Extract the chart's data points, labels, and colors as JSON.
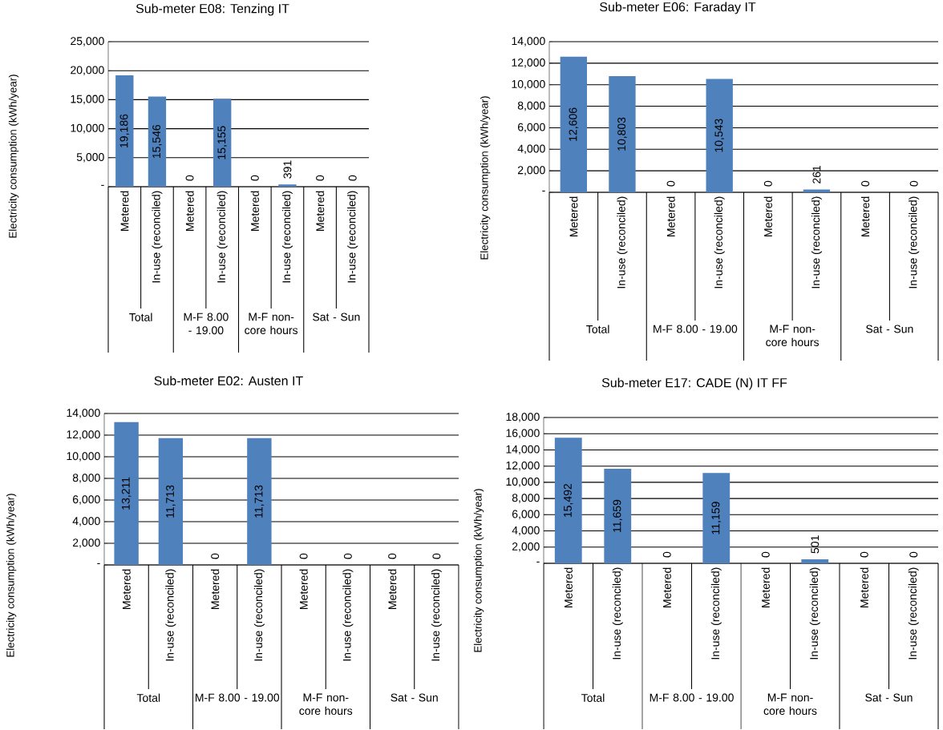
{
  "chart_data": [
    {
      "type": "bar",
      "title": "Sub-meter E08: Tenzing IT",
      "ylabel": "Electricity consumption (kWh/year)",
      "categories": [
        "Metered",
        "In-use (reconciled)",
        "Metered",
        "In-use (reconciled)",
        "Metered",
        "In-use (reconciled)",
        "Metered",
        "In-use (reconciled)"
      ],
      "values": [
        19186,
        15546,
        0,
        15155,
        0,
        391,
        0,
        0
      ],
      "value_labels": [
        "19,186",
        "15,546",
        "0",
        "15,155",
        "0",
        "391",
        "0",
        "0"
      ],
      "color": "#4f81bd",
      "ylim": [
        0,
        25000
      ],
      "yticks": [
        {
          "value": 0,
          "label": "-"
        },
        {
          "value": 5000,
          "label": "5,000"
        },
        {
          "value": 10000,
          "label": "10,000"
        },
        {
          "value": 15000,
          "label": "15,000"
        },
        {
          "value": 20000,
          "label": "20,000"
        },
        {
          "value": 25000,
          "label": "25,000"
        }
      ],
      "grid": "y",
      "annotations": [
        "Total",
        "M-F 8.00 - 19.00",
        "M-F non-core hours",
        "Sat - Sun"
      ]
    },
    {
      "type": "bar",
      "title": "Sub-meter E06: Faraday IT",
      "ylabel": "Electricity consumption (kWh/year)",
      "categories": [
        "Metered",
        "In-use (reconciled)",
        "Metered",
        "In-use (reconciled)",
        "Metered",
        "In-use (reconciled)",
        "Metered",
        "In-use (reconciled)"
      ],
      "values": [
        12606,
        10803,
        0,
        10543,
        0,
        261,
        0,
        0
      ],
      "value_labels": [
        "12,606",
        "10,803",
        "0",
        "10,543",
        "0",
        "261",
        "0",
        "0"
      ],
      "color": "#4f81bd",
      "ylim": [
        0,
        14000
      ],
      "yticks": [
        {
          "value": 0,
          "label": "-"
        },
        {
          "value": 2000,
          "label": "2,000"
        },
        {
          "value": 4000,
          "label": "4,000"
        },
        {
          "value": 6000,
          "label": "6,000"
        },
        {
          "value": 8000,
          "label": "8,000"
        },
        {
          "value": 10000,
          "label": "10,000"
        },
        {
          "value": 12000,
          "label": "12,000"
        },
        {
          "value": 14000,
          "label": "14,000"
        }
      ],
      "grid": "y",
      "annotations": [
        "Total",
        "M-F 8.00 - 19.00",
        "M-F non-core hours",
        "Sat - Sun"
      ]
    },
    {
      "type": "bar",
      "title": "Sub-meter E02: Austen IT",
      "ylabel": "Electricity consumption (kWh/year)",
      "categories": [
        "Metered",
        "In-use (reconciled)",
        "Metered",
        "In-use (reconciled)",
        "Metered",
        "In-use (reconciled)",
        "Metered",
        "In-use (reconciled)"
      ],
      "values": [
        13211,
        11713,
        0,
        11713,
        0,
        0,
        0,
        0
      ],
      "value_labels": [
        "13,211",
        "11,713",
        "0",
        "11,713",
        "0",
        "0",
        "0",
        "0"
      ],
      "color": "#4f81bd",
      "ylim": [
        0,
        14000
      ],
      "yticks": [
        {
          "value": 0,
          "label": "-"
        },
        {
          "value": 2000,
          "label": "2,000"
        },
        {
          "value": 4000,
          "label": "4,000"
        },
        {
          "value": 6000,
          "label": "6,000"
        },
        {
          "value": 8000,
          "label": "8,000"
        },
        {
          "value": 10000,
          "label": "10,000"
        },
        {
          "value": 12000,
          "label": "12,000"
        },
        {
          "value": 14000,
          "label": "14,000"
        }
      ],
      "grid": "y",
      "annotations": [
        "Total",
        "M-F 8.00 - 19.00",
        "M-F non-core hours",
        "Sat - Sun"
      ]
    },
    {
      "type": "bar",
      "title": "Sub-meter E17: CADE (N) IT FF",
      "ylabel": "Electricity consumption (kWh/year)",
      "categories": [
        "Metered",
        "In-use (reconciled)",
        "Metered",
        "In-use (reconciled)",
        "Metered",
        "In-use (reconciled)",
        "Metered",
        "In-use (reconciled)"
      ],
      "values": [
        15492,
        11659,
        0,
        11159,
        0,
        501,
        0,
        0
      ],
      "value_labels": [
        "15,492",
        "11,659",
        "0",
        "11,159",
        "0",
        "501",
        "0",
        "0"
      ],
      "color": "#4f81bd",
      "ylim": [
        0,
        18000
      ],
      "yticks": [
        {
          "value": 0,
          "label": "-"
        },
        {
          "value": 2000,
          "label": "2,000"
        },
        {
          "value": 4000,
          "label": "4,000"
        },
        {
          "value": 6000,
          "label": "6,000"
        },
        {
          "value": 8000,
          "label": "8,000"
        },
        {
          "value": 10000,
          "label": "10,000"
        },
        {
          "value": 12000,
          "label": "12,000"
        },
        {
          "value": 14000,
          "label": "14,000"
        },
        {
          "value": 16000,
          "label": "16,000"
        },
        {
          "value": 18000,
          "label": "18,000"
        }
      ],
      "grid": "y",
      "annotations": [
        "Total",
        "M-F 8.00 - 19.00",
        "M-F non-core hours",
        "Sat - Sun"
      ]
    }
  ]
}
